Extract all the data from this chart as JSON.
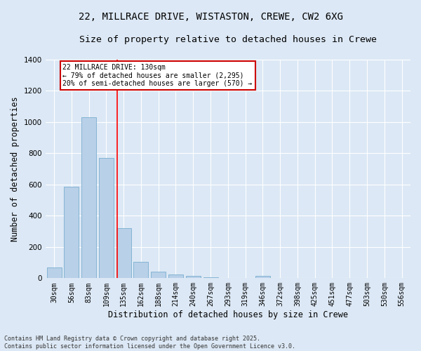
{
  "title1": "22, MILLRACE DRIVE, WISTASTON, CREWE, CW2 6XG",
  "title2": "Size of property relative to detached houses in Crewe",
  "xlabel": "Distribution of detached houses by size in Crewe",
  "ylabel": "Number of detached properties",
  "categories": [
    "30sqm",
    "56sqm",
    "83sqm",
    "109sqm",
    "135sqm",
    "162sqm",
    "188sqm",
    "214sqm",
    "240sqm",
    "267sqm",
    "293sqm",
    "319sqm",
    "346sqm",
    "372sqm",
    "398sqm",
    "425sqm",
    "451sqm",
    "477sqm",
    "503sqm",
    "530sqm",
    "556sqm"
  ],
  "values": [
    70,
    585,
    1030,
    770,
    320,
    105,
    43,
    25,
    13,
    8,
    0,
    0,
    13,
    0,
    0,
    0,
    0,
    0,
    0,
    0,
    0
  ],
  "bar_color": "#b8d0e8",
  "bar_edge_color": "#7aaed0",
  "background_color": "#dce8f5",
  "grid_color": "#ffffff",
  "annotation_text": "22 MILLRACE DRIVE: 130sqm\n← 79% of detached houses are smaller (2,295)\n20% of semi-detached houses are larger (570) →",
  "redline_index": 3.62,
  "ylim": [
    0,
    1400
  ],
  "yticks": [
    0,
    200,
    400,
    600,
    800,
    1000,
    1200,
    1400
  ],
  "footer": "Contains HM Land Registry data © Crown copyright and database right 2025.\nContains public sector information licensed under the Open Government Licence v3.0.",
  "annotation_box_color": "#cc0000",
  "title_fontsize": 10,
  "subtitle_fontsize": 9.5,
  "axis_fontsize": 8.5,
  "tick_fontsize": 7,
  "footer_fontsize": 6
}
